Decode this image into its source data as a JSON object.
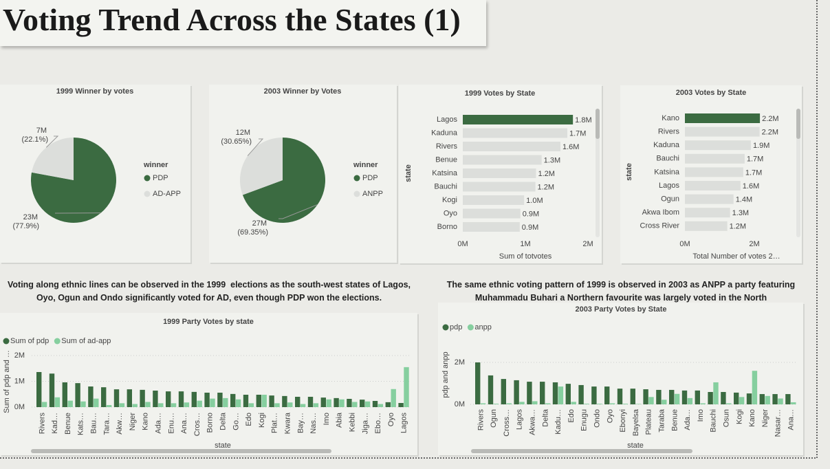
{
  "title": "Voting Trend Across the States (1)",
  "notes": [
    "Voting along ethnic lines can be observed in the 1999  elections as the south-west states of Lagos, Oyo, Ogun and Ondo significantly voted for AD, even though PDP won the elections.",
    "The same ethnic voting pattern of 1999 is observed in 2003 as ANPP a party featuring Muhammadu Buhari a Northern favourite was largely voted in the North"
  ],
  "chart_data": [
    {
      "type": "pie",
      "title": "1999 Winner by votes",
      "legend_title": "winner",
      "categories": [
        "PDP",
        "AD-APP"
      ],
      "colors": [
        "#3b6b41",
        "#dcdedb"
      ],
      "values": [
        23000000,
        7000000
      ],
      "value_labels": [
        "23M",
        "7M"
      ],
      "percents": [
        77.9,
        22.1
      ],
      "percent_labels": [
        "(77.9%)",
        "(22.1%)"
      ]
    },
    {
      "type": "pie",
      "title": "2003 Winner by Votes",
      "legend_title": "winner",
      "categories": [
        "PDP",
        "ANPP"
      ],
      "colors": [
        "#3b6b41",
        "#dcdedb"
      ],
      "values": [
        27000000,
        12000000
      ],
      "value_labels": [
        "27M",
        "12M"
      ],
      "percents": [
        69.35,
        30.65
      ],
      "percent_labels": [
        "(69.35%)",
        "(30.65%)"
      ]
    },
    {
      "type": "hbar",
      "title": "1999 Votes by State",
      "x_label": "Sum of totvotes",
      "y_label": "state",
      "categories": [
        "Lagos",
        "Kaduna",
        "Rivers",
        "Benue",
        "Katsina",
        "Bauchi",
        "Kogi",
        "Oyo",
        "Borno"
      ],
      "values": [
        1760000,
        1670000,
        1560000,
        1260000,
        1170000,
        1160000,
        980000,
        920000,
        910000
      ],
      "value_labels": [
        "1.8M",
        "1.7M",
        "1.6M",
        "1.3M",
        "1.2M",
        "1.2M",
        "1.0M",
        "0.9M",
        "0.9M"
      ],
      "bar_colors": [
        "#3b6b41",
        "#dcdedb",
        "#dcdedb",
        "#dcdedb",
        "#dcdedb",
        "#dcdedb",
        "#dcdedb",
        "#dcdedb",
        "#dcdedb"
      ],
      "xlim": [
        0,
        2000000
      ],
      "xticks": [
        {
          "value": 0,
          "label": "0M"
        },
        {
          "value": 1000000,
          "label": "1M"
        },
        {
          "value": 2000000,
          "label": "2M"
        }
      ]
    },
    {
      "type": "hbar",
      "title": "2003 Votes by State",
      "x_label": "Total Number of votes 2…",
      "y_label": "state",
      "categories": [
        "Kano",
        "Rivers",
        "Kaduna",
        "Bauchi",
        "Katsina",
        "Lagos",
        "Ogun",
        "Akwa Ibom",
        "Cross River"
      ],
      "values": [
        2160000,
        2150000,
        1900000,
        1720000,
        1680000,
        1600000,
        1400000,
        1300000,
        1220000
      ],
      "value_labels": [
        "2.2M",
        "2.2M",
        "1.9M",
        "1.7M",
        "1.7M",
        "1.6M",
        "1.4M",
        "1.3M",
        "1.2M"
      ],
      "bar_colors": [
        "#3b6b41",
        "#dcdedb",
        "#dcdedb",
        "#dcdedb",
        "#dcdedb",
        "#dcdedb",
        "#dcdedb",
        "#dcdedb",
        "#dcdedb"
      ],
      "xlim": [
        0,
        3000000
      ],
      "xticks": [
        {
          "value": 0,
          "label": "0M"
        },
        {
          "value": 2000000,
          "label": "2M"
        }
      ]
    },
    {
      "type": "column",
      "title": "1999 Party Votes by state",
      "x_label": "state",
      "y_label": "Sum of pdp and …",
      "grid": true,
      "categories": [
        "Rivers",
        "Kad…",
        "Benue",
        "Kats…",
        "Bau…",
        "Tara…",
        "Akw…",
        "Niger",
        "Kano",
        "Ada…",
        "Enu…",
        "Ana…",
        "Cros…",
        "Borno",
        "Delta",
        "Go…",
        "Edo",
        "Kogi",
        "Plat…",
        "Kwara",
        "Bay…",
        "Nas…",
        "Imo",
        "Abia",
        "Kebbi",
        "Jiga…",
        "Ebo…",
        "Oyo",
        "Lagos"
      ],
      "series": [
        {
          "name": "Sum of pdp",
          "color": "#3b6b41",
          "values": [
            1360000,
            1300000,
            960000,
            930000,
            800000,
            770000,
            690000,
            690000,
            670000,
            640000,
            610000,
            610000,
            590000,
            560000,
            560000,
            510000,
            480000,
            480000,
            450000,
            430000,
            400000,
            400000,
            370000,
            350000,
            320000,
            290000,
            240000,
            190000,
            160000
          ]
        },
        {
          "name": "Sum of ad-app",
          "color": "#86cf9f",
          "values": [
            200000,
            380000,
            250000,
            220000,
            330000,
            80000,
            150000,
            120000,
            200000,
            150000,
            150000,
            180000,
            250000,
            330000,
            350000,
            300000,
            150000,
            480000,
            150000,
            180000,
            120000,
            150000,
            300000,
            300000,
            200000,
            220000,
            120000,
            700000,
            1550000
          ]
        }
      ],
      "ylim": [
        0,
        2000000
      ],
      "yticks": [
        {
          "value": 0,
          "label": "0M"
        },
        {
          "value": 1000000,
          "label": "1M"
        },
        {
          "value": 2000000,
          "label": "2M"
        }
      ]
    },
    {
      "type": "column",
      "title": "2003 Party Votes by State",
      "x_label": "state",
      "y_label": "pdp and anpp",
      "grid": true,
      "categories": [
        "Rivers",
        "Ogun",
        "Cross…",
        "Lagos",
        "Akwa…",
        "Delta",
        "Kadu…",
        "Edo",
        "Enugu",
        "Ondo",
        "Oyo",
        "Ebonyi",
        "Bayelsa",
        "Plateau",
        "Taraba",
        "Benue",
        "Ada…",
        "Imo",
        "Bauchi",
        "Osun",
        "Kogi",
        "Kano",
        "Niger",
        "Nasar…",
        "Ana…"
      ],
      "series": [
        {
          "name": "pdp",
          "color": "#3b6b41",
          "values": [
            2000000,
            1380000,
            1210000,
            1150000,
            1080000,
            1080000,
            1050000,
            980000,
            920000,
            850000,
            850000,
            750000,
            750000,
            720000,
            690000,
            690000,
            660000,
            660000,
            590000,
            590000,
            560000,
            520000,
            490000,
            490000,
            490000
          ]
        },
        {
          "name": "anpp",
          "color": "#86cf9f",
          "values": [
            50000,
            30000,
            50000,
            120000,
            150000,
            50000,
            850000,
            120000,
            30000,
            30000,
            50000,
            30000,
            20000,
            350000,
            220000,
            500000,
            300000,
            50000,
            1050000,
            50000,
            350000,
            1600000,
            400000,
            280000,
            100000
          ]
        }
      ],
      "ylim": [
        0,
        2000000
      ],
      "yticks": [
        {
          "value": 0,
          "label": "0M"
        },
        {
          "value": 2000000,
          "label": "2M"
        }
      ]
    }
  ]
}
